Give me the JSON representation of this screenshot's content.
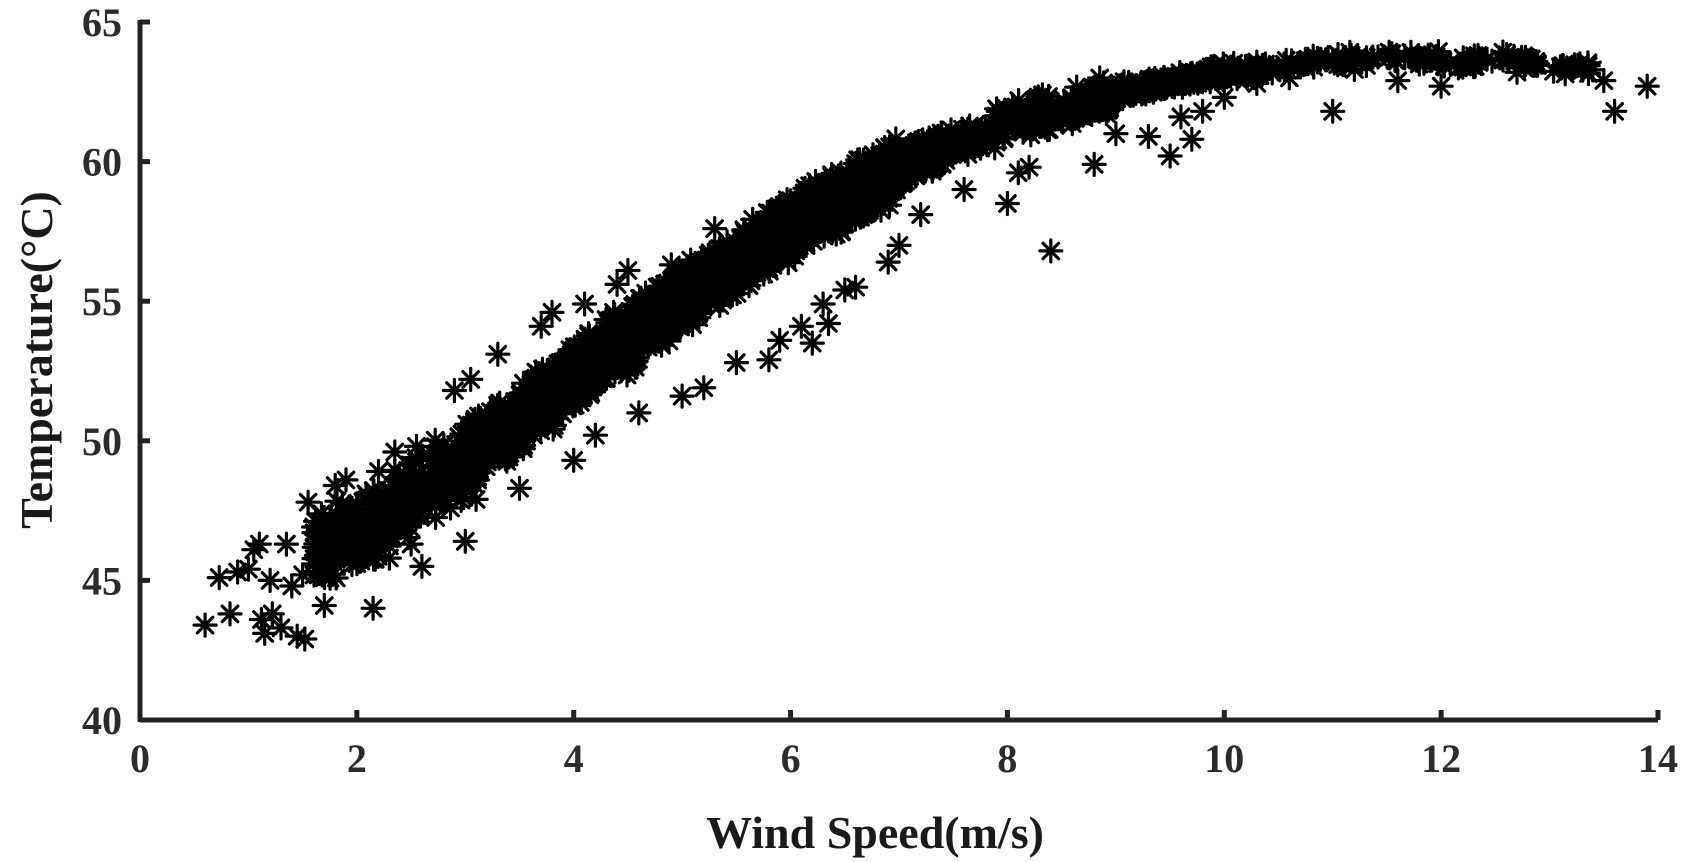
{
  "chart_data": {
    "type": "scatter",
    "marker": "asterisk",
    "marker_color": "#000000",
    "xlabel": "Wind Speed(m/s)",
    "ylabel": "Temperature(°C)",
    "xlim": [
      0,
      14
    ],
    "ylim": [
      40,
      65
    ],
    "xticks": [
      "0",
      "2",
      "4",
      "6",
      "8",
      "10",
      "12",
      "14"
    ],
    "yticks": [
      "40",
      "45",
      "50",
      "55",
      "60",
      "65"
    ],
    "grid": false,
    "legend": "none",
    "trend": {
      "description_free": true,
      "curve": [
        [
          0.6,
          43.8
        ],
        [
          1.0,
          45.0
        ],
        [
          2.0,
          46.6
        ],
        [
          3.0,
          49.3
        ],
        [
          4.0,
          52.3
        ],
        [
          5.0,
          55.1
        ],
        [
          6.0,
          57.6
        ],
        [
          7.0,
          59.8
        ],
        [
          8.0,
          61.4
        ],
        [
          9.0,
          62.5
        ],
        [
          10.0,
          63.2
        ],
        [
          11.0,
          63.6
        ],
        [
          12.0,
          63.7
        ],
        [
          13.0,
          63.5
        ],
        [
          13.8,
          63.0
        ]
      ]
    },
    "points": [
      {
        "x": 0.6,
        "y": 43.4
      },
      {
        "x": 0.73,
        "y": 45.1
      },
      {
        "x": 0.83,
        "y": 43.8
      },
      {
        "x": 0.9,
        "y": 45.3
      },
      {
        "x": 1.0,
        "y": 45.4
      },
      {
        "x": 1.05,
        "y": 46.1
      },
      {
        "x": 1.1,
        "y": 46.3
      },
      {
        "x": 1.12,
        "y": 43.6
      },
      {
        "x": 1.15,
        "y": 43.1
      },
      {
        "x": 1.2,
        "y": 45.0
      },
      {
        "x": 1.22,
        "y": 43.8
      },
      {
        "x": 1.3,
        "y": 43.3
      },
      {
        "x": 1.35,
        "y": 46.3
      },
      {
        "x": 1.4,
        "y": 44.8
      },
      {
        "x": 1.45,
        "y": 43.0
      },
      {
        "x": 1.5,
        "y": 45.2
      },
      {
        "x": 1.52,
        "y": 42.9
      },
      {
        "x": 1.55,
        "y": 47.8
      },
      {
        "x": 1.65,
        "y": 46.6
      },
      {
        "x": 1.7,
        "y": 44.1
      },
      {
        "x": 1.75,
        "y": 45.4
      },
      {
        "x": 1.8,
        "y": 48.4
      },
      {
        "x": 1.9,
        "y": 48.6
      },
      {
        "x": 1.95,
        "y": 47.0
      },
      {
        "x": 2.0,
        "y": 45.6
      },
      {
        "x": 2.1,
        "y": 46.9
      },
      {
        "x": 2.15,
        "y": 44.0
      },
      {
        "x": 2.2,
        "y": 48.9
      },
      {
        "x": 2.3,
        "y": 45.8
      },
      {
        "x": 2.35,
        "y": 49.6
      },
      {
        "x": 2.4,
        "y": 47.3
      },
      {
        "x": 2.5,
        "y": 46.3
      },
      {
        "x": 2.55,
        "y": 49.8
      },
      {
        "x": 2.6,
        "y": 45.5
      },
      {
        "x": 2.7,
        "y": 48.0
      },
      {
        "x": 2.8,
        "y": 49.3
      },
      {
        "x": 2.9,
        "y": 51.8
      },
      {
        "x": 3.0,
        "y": 46.4
      },
      {
        "x": 3.05,
        "y": 52.2
      },
      {
        "x": 3.1,
        "y": 47.9
      },
      {
        "x": 3.3,
        "y": 53.1
      },
      {
        "x": 3.5,
        "y": 48.3
      },
      {
        "x": 3.7,
        "y": 54.1
      },
      {
        "x": 3.8,
        "y": 54.6
      },
      {
        "x": 4.0,
        "y": 49.3
      },
      {
        "x": 4.1,
        "y": 54.9
      },
      {
        "x": 4.2,
        "y": 50.2
      },
      {
        "x": 4.4,
        "y": 55.6
      },
      {
        "x": 4.5,
        "y": 56.1
      },
      {
        "x": 4.6,
        "y": 51.0
      },
      {
        "x": 4.9,
        "y": 56.3
      },
      {
        "x": 5.0,
        "y": 51.6
      },
      {
        "x": 5.2,
        "y": 51.9
      },
      {
        "x": 5.3,
        "y": 57.6
      },
      {
        "x": 5.5,
        "y": 52.8
      },
      {
        "x": 5.8,
        "y": 52.9
      },
      {
        "x": 5.9,
        "y": 53.6
      },
      {
        "x": 6.0,
        "y": 58.6
      },
      {
        "x": 6.1,
        "y": 54.1
      },
      {
        "x": 6.2,
        "y": 53.5
      },
      {
        "x": 6.3,
        "y": 54.9
      },
      {
        "x": 6.35,
        "y": 54.2
      },
      {
        "x": 6.5,
        "y": 55.4
      },
      {
        "x": 6.6,
        "y": 55.5
      },
      {
        "x": 6.9,
        "y": 56.4
      },
      {
        "x": 7.0,
        "y": 57.0
      },
      {
        "x": 7.2,
        "y": 58.1
      },
      {
        "x": 7.6,
        "y": 59.0
      },
      {
        "x": 8.0,
        "y": 58.5
      },
      {
        "x": 8.1,
        "y": 59.6
      },
      {
        "x": 8.2,
        "y": 59.8
      },
      {
        "x": 8.4,
        "y": 56.8
      },
      {
        "x": 8.8,
        "y": 59.9
      },
      {
        "x": 9.0,
        "y": 61.0
      },
      {
        "x": 9.3,
        "y": 60.9
      },
      {
        "x": 9.5,
        "y": 60.2
      },
      {
        "x": 9.6,
        "y": 61.6
      },
      {
        "x": 9.7,
        "y": 60.8
      },
      {
        "x": 9.8,
        "y": 61.8
      },
      {
        "x": 10.0,
        "y": 62.3
      },
      {
        "x": 10.3,
        "y": 62.8
      },
      {
        "x": 10.6,
        "y": 63.0
      },
      {
        "x": 11.0,
        "y": 61.8
      },
      {
        "x": 11.2,
        "y": 63.3
      },
      {
        "x": 11.6,
        "y": 62.9
      },
      {
        "x": 12.0,
        "y": 62.7
      },
      {
        "x": 12.3,
        "y": 63.4
      },
      {
        "x": 12.7,
        "y": 63.2
      },
      {
        "x": 13.1,
        "y": 63.4
      },
      {
        "x": 13.5,
        "y": 62.9
      },
      {
        "x": 13.6,
        "y": 61.8
      },
      {
        "x": 13.9,
        "y": 62.7
      }
    ]
  }
}
